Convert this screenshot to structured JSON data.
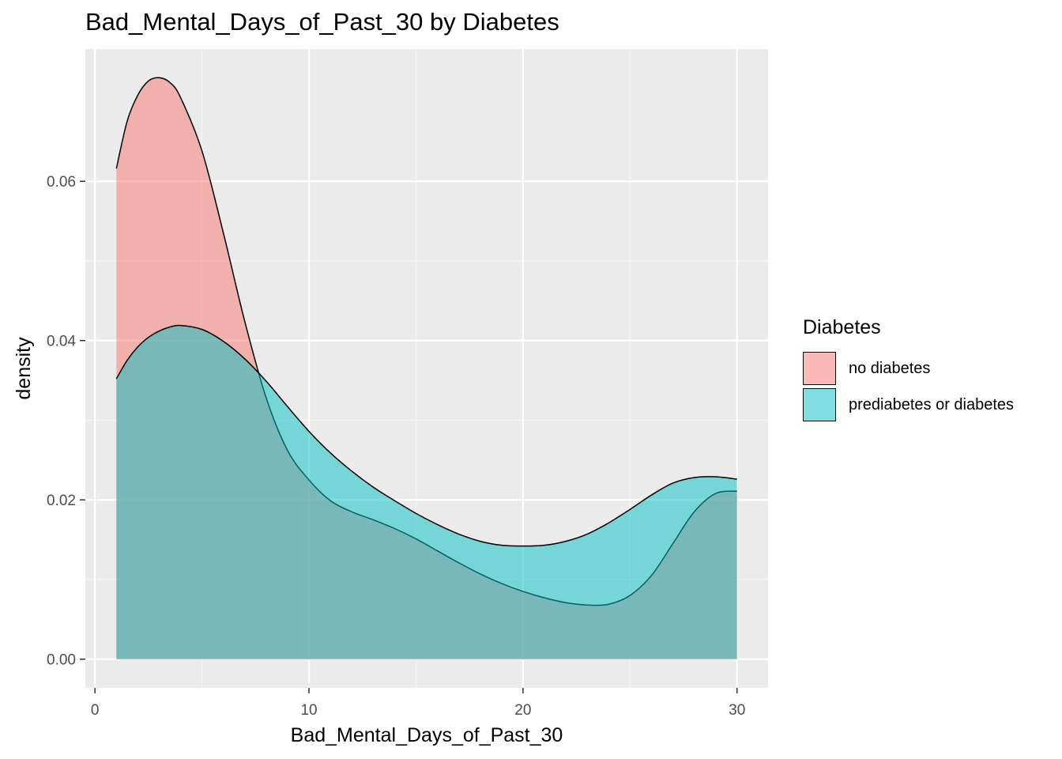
{
  "chart_data": {
    "type": "area",
    "title": "Bad_Mental_Days_of_Past_30 by Diabetes",
    "xlabel": "Bad_Mental_Days_of_Past_30",
    "ylabel": "density",
    "xlim": [
      -0.45,
      31.45
    ],
    "ylim": [
      -0.0036,
      0.0766
    ],
    "x_ticks": [
      0,
      10,
      20,
      30
    ],
    "x_tick_labels": [
      "0",
      "10",
      "20",
      "30"
    ],
    "y_ticks": [
      0.0,
      0.02,
      0.04,
      0.06
    ],
    "y_tick_labels": [
      "0.00",
      "0.02",
      "0.04",
      "0.06"
    ],
    "grid": true,
    "legend_title": "Diabetes",
    "legend_position": "right",
    "series": [
      {
        "name": "no diabetes",
        "color": "#F8766D",
        "x": [
          1,
          1.5,
          2,
          2.5,
          3,
          3.5,
          4,
          5,
          6,
          7,
          8,
          9,
          10,
          11,
          12,
          13,
          14,
          15,
          16,
          17,
          18,
          19,
          20,
          21,
          22,
          23,
          24,
          25,
          26,
          27,
          28,
          29,
          30
        ],
        "y": [
          0.0616,
          0.0675,
          0.0708,
          0.0726,
          0.073,
          0.0724,
          0.0705,
          0.0638,
          0.0535,
          0.0424,
          0.0328,
          0.0262,
          0.0225,
          0.0199,
          0.0185,
          0.0175,
          0.0164,
          0.0151,
          0.0136,
          0.0121,
          0.0107,
          0.0095,
          0.0085,
          0.0077,
          0.0071,
          0.0068,
          0.0069,
          0.008,
          0.0105,
          0.0145,
          0.0185,
          0.0208,
          0.0211
        ]
      },
      {
        "name": "prediabetes or diabetes",
        "color": "#00BFC4",
        "x": [
          1,
          1.5,
          2,
          2.5,
          3,
          3.5,
          4,
          5,
          6,
          7,
          8,
          9,
          10,
          11,
          12,
          13,
          14,
          15,
          16,
          17,
          18,
          19,
          20,
          21,
          22,
          23,
          24,
          25,
          26,
          27,
          28,
          29,
          30
        ],
        "y": [
          0.0352,
          0.0375,
          0.0392,
          0.0404,
          0.0412,
          0.0417,
          0.0419,
          0.0414,
          0.0399,
          0.0377,
          0.0349,
          0.0317,
          0.0286,
          0.0259,
          0.0236,
          0.0216,
          0.0199,
          0.0183,
          0.0169,
          0.0157,
          0.0148,
          0.0143,
          0.0142,
          0.0143,
          0.0148,
          0.0157,
          0.0171,
          0.0188,
          0.0206,
          0.0221,
          0.0228,
          0.0229,
          0.0226
        ]
      }
    ]
  }
}
